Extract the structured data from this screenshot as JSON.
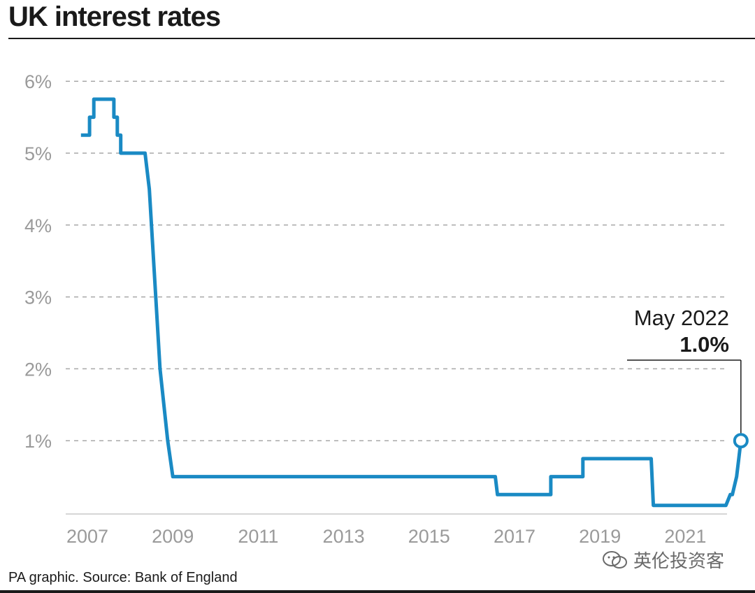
{
  "title": "UK interest rates",
  "source": "PA graphic. Source: Bank of England",
  "watermark": "英伦投资客",
  "colors": {
    "line": "#1a8ac4",
    "text": "#1a1a1a",
    "tick": "#9a9a9a",
    "grid": "#a8a8a8"
  },
  "chart_data": {
    "type": "line",
    "title": "UK interest rates",
    "xlabel": "",
    "ylabel": "",
    "xlim": [
      2006.8,
      2022.4
    ],
    "ylim": [
      0,
      6
    ],
    "grid": true,
    "y_ticks": [
      {
        "value": 1,
        "label": "1%"
      },
      {
        "value": 2,
        "label": "2%"
      },
      {
        "value": 3,
        "label": "3%"
      },
      {
        "value": 4,
        "label": "4%"
      },
      {
        "value": 5,
        "label": "5%"
      },
      {
        "value": 6,
        "label": "6%"
      }
    ],
    "x_ticks": [
      {
        "value": 2007,
        "label": "2007"
      },
      {
        "value": 2009,
        "label": "2009"
      },
      {
        "value": 2011,
        "label": "2011"
      },
      {
        "value": 2013,
        "label": "2013"
      },
      {
        "value": 2015,
        "label": "2015"
      },
      {
        "value": 2017,
        "label": "2017"
      },
      {
        "value": 2019,
        "label": "2019"
      },
      {
        "value": 2021,
        "label": "2021"
      }
    ],
    "series": [
      {
        "x": [
          2006.85,
          2007.05,
          2007.05,
          2007.15,
          2007.15,
          2007.25,
          2007.25,
          2007.62,
          2007.62,
          2007.7,
          2007.7,
          2007.78,
          2007.78,
          2007.9,
          2007.9,
          2008.35,
          2008.45,
          2008.6,
          2008.7,
          2008.88,
          2009.0,
          2016.55,
          2016.6,
          2017.85,
          2017.85,
          2018.6,
          2018.6,
          2020.2,
          2020.25,
          2021.95,
          2022.05,
          2022.1,
          2022.2,
          2022.25,
          2022.3
        ],
        "y": [
          5.25,
          5.25,
          5.5,
          5.5,
          5.75,
          5.75,
          5.75,
          5.75,
          5.5,
          5.5,
          5.25,
          5.25,
          5.0,
          5.0,
          5.0,
          5.0,
          4.5,
          3.0,
          2.0,
          1.0,
          0.5,
          0.5,
          0.25,
          0.25,
          0.5,
          0.5,
          0.75,
          0.75,
          0.1,
          0.1,
          0.25,
          0.25,
          0.5,
          0.75,
          1.0
        ]
      }
    ],
    "annotation": {
      "date": "May 2022",
      "value": "1.0%",
      "x": 2022.3,
      "y": 1.0
    }
  }
}
